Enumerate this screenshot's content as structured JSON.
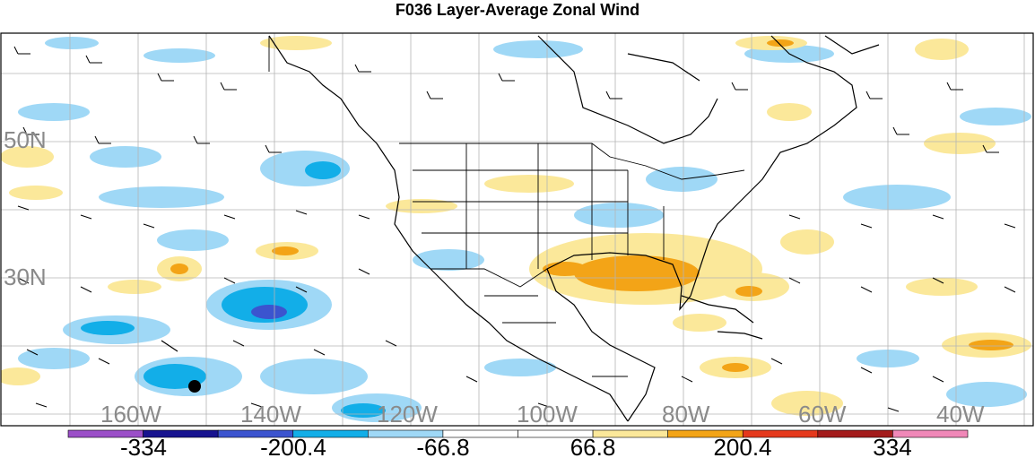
{
  "title": "F036 Layer-Average Zonal Wind",
  "lat_labels": [
    "50N",
    "30N"
  ],
  "lon_labels": [
    "160W",
    "140W",
    "120W",
    "100W",
    "80W",
    "60W",
    "40W"
  ],
  "colorbar": {
    "colors": [
      "#9b4fc8",
      "#17138f",
      "#3b54cf",
      "#12aee8",
      "#9fd8f6",
      "#ffffff",
      "#ffffff",
      "#fbe89a",
      "#f3a417",
      "#e5391d",
      "#a31b1b",
      "#f088b8"
    ],
    "labels": [
      "-334",
      "-200.4",
      "-66.8",
      "66.8",
      "200.4",
      "334"
    ]
  },
  "marker": "station-dot"
}
